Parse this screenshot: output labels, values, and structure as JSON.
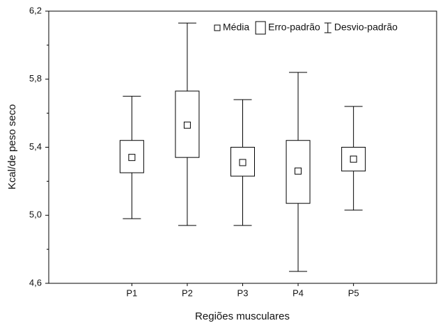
{
  "chart_data": {
    "type": "box",
    "x_label": "Regiões musculares",
    "y_label": "Kcal/de peso seco",
    "categories": [
      "P1",
      "P2",
      "P3",
      "P4",
      "P5"
    ],
    "mean": [
      5.34,
      5.53,
      5.31,
      5.26,
      5.33
    ],
    "box_low": [
      5.25,
      5.34,
      5.23,
      5.07,
      5.26
    ],
    "box_high": [
      5.44,
      5.73,
      5.4,
      5.44,
      5.4
    ],
    "whisker_low": [
      4.98,
      4.94,
      4.94,
      4.67,
      5.03
    ],
    "whisker_high": [
      5.7,
      6.13,
      5.68,
      5.84,
      5.64
    ],
    "legend": {
      "mean": "Média",
      "box": "Erro-padrão",
      "whisker": "Desvio-padrão"
    },
    "legend_position": "top-right",
    "color": "#000000",
    "ylim": [
      4.6,
      6.2
    ],
    "yticks": [
      {
        "value": 4.6,
        "label": "4,6"
      },
      {
        "value": 5.0,
        "label": "5,0"
      },
      {
        "value": 5.4,
        "label": "5,4"
      },
      {
        "value": 5.8,
        "label": "5,8"
      },
      {
        "value": 6.2,
        "label": "6,2"
      }
    ],
    "yminorticks": [
      4.8,
      5.2,
      5.6,
      6.0
    ]
  }
}
